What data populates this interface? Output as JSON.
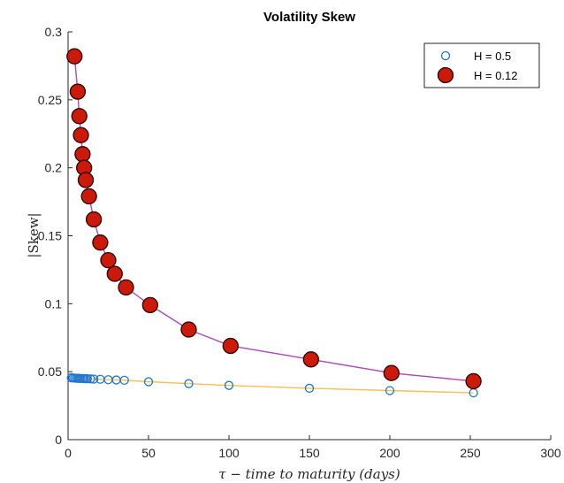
{
  "chart_data": {
    "type": "scatter",
    "title": "Volatility Skew",
    "xlabel": "τ − time to maturity (days)",
    "ylabel": "|Skew|",
    "xlim": [
      0,
      300
    ],
    "ylim": [
      0,
      0.3
    ],
    "xticks": [
      0,
      50,
      100,
      150,
      200,
      250,
      300
    ],
    "xtick_labels": [
      "0",
      "50",
      "100",
      "150",
      "200",
      "250",
      "300"
    ],
    "yticks": [
      0,
      0.05,
      0.1,
      0.15,
      0.2,
      0.25,
      0.3
    ],
    "ytick_labels": [
      "0",
      "0.05",
      "0.1",
      "0.15",
      "0.2",
      "0.25",
      "0.3"
    ],
    "grid": false,
    "legend_position": "top-right",
    "series": [
      {
        "name": "H = 0.5",
        "marker": "open-circle",
        "marker_color": "#1f77d4",
        "line_color": "#f2c057",
        "x": [
          2,
          3,
          4,
          5,
          6,
          7,
          8,
          9,
          10,
          11,
          12,
          14,
          16,
          20,
          25,
          30,
          35,
          50,
          75,
          100,
          150,
          200,
          252
        ],
        "y": [
          0.0455,
          0.0454,
          0.0453,
          0.0452,
          0.0451,
          0.0451,
          0.045,
          0.045,
          0.0449,
          0.0449,
          0.0448,
          0.0447,
          0.0446,
          0.0444,
          0.0441,
          0.0439,
          0.0437,
          0.0426,
          0.0412,
          0.0399,
          0.0378,
          0.0361,
          0.0344
        ]
      },
      {
        "name": "H = 0.12",
        "marker": "filled-circle",
        "marker_color": "#cc1a0a",
        "line_color": "#a94bb3",
        "x": [
          4,
          6,
          7,
          8,
          9,
          10,
          11,
          13,
          16,
          20,
          25,
          29,
          36,
          51,
          75,
          101,
          151,
          201,
          252
        ],
        "y": [
          0.282,
          0.256,
          0.238,
          0.224,
          0.21,
          0.2,
          0.191,
          0.179,
          0.162,
          0.145,
          0.132,
          0.122,
          0.112,
          0.099,
          0.081,
          0.069,
          0.059,
          0.049,
          0.043
        ]
      }
    ]
  }
}
